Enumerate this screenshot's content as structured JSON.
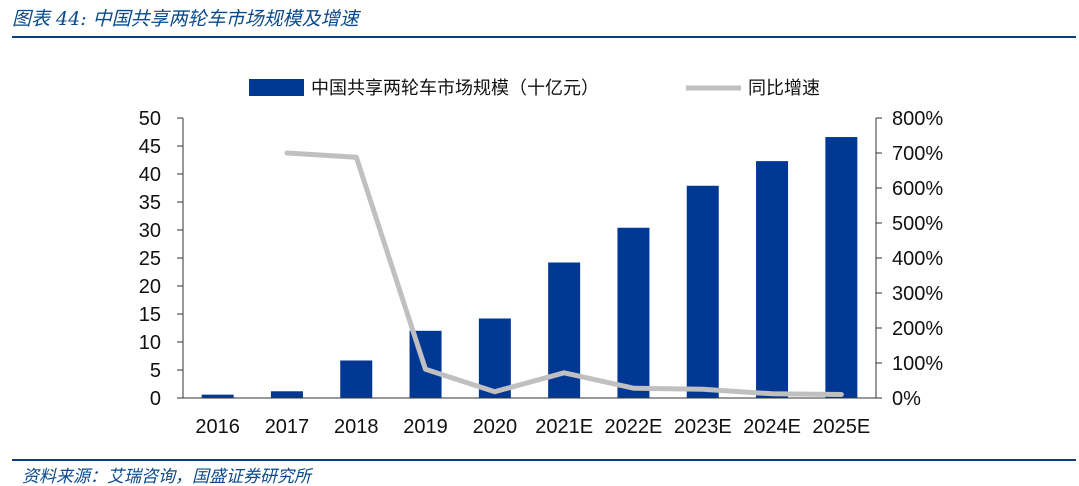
{
  "figure": {
    "title": "图表 44:   中国共享两轮车市场规模及增速",
    "source": "资料来源：艾瑞咨询，国盛证券研究所"
  },
  "chart_data": {
    "type": "bar",
    "categories": [
      "2016",
      "2017",
      "2018",
      "2019",
      "2020",
      "2021E",
      "2022E",
      "2023E",
      "2024E",
      "2025E"
    ],
    "series": [
      {
        "name": "中国共享两轮车市场规模（十亿元）",
        "type": "bar",
        "axis": "left",
        "color": "#003894",
        "values": [
          0.6,
          1.2,
          6.7,
          12.0,
          14.2,
          24.2,
          30.4,
          37.9,
          42.3,
          46.6
        ]
      },
      {
        "name": "同比增速",
        "type": "line",
        "axis": "right",
        "unit": "%",
        "color": "#c0c0c0",
        "values": [
          null,
          700,
          688,
          82,
          18,
          72,
          28,
          25,
          12,
          10
        ]
      }
    ],
    "y_left": {
      "min": 0,
      "max": 50,
      "ticks": [
        0,
        5,
        10,
        15,
        20,
        25,
        30,
        35,
        40,
        45,
        50
      ]
    },
    "y_right": {
      "min": 0,
      "max": 800,
      "ticks": [
        "0%",
        "100%",
        "200%",
        "300%",
        "400%",
        "500%",
        "600%",
        "700%",
        "800%"
      ]
    },
    "legend": "top",
    "grid": false
  }
}
